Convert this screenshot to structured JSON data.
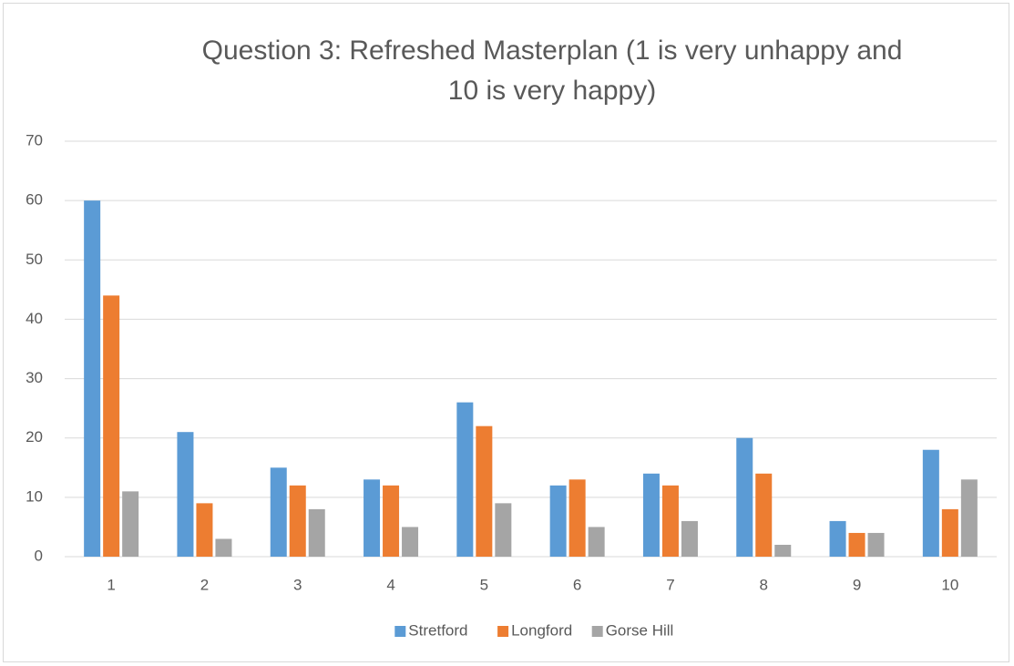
{
  "chart_data": {
    "type": "bar",
    "title": "Question 3: Refreshed Masterplan (1 is very unhappy and 10 is very happy)",
    "categories": [
      "1",
      "2",
      "3",
      "4",
      "5",
      "6",
      "7",
      "8",
      "9",
      "10"
    ],
    "series": [
      {
        "name": "Stretford",
        "color": "#5b9bd5",
        "values": [
          60,
          21,
          15,
          13,
          26,
          12,
          14,
          20,
          6,
          18
        ]
      },
      {
        "name": "Longford",
        "color": "#ed7d31",
        "values": [
          44,
          9,
          12,
          12,
          22,
          13,
          12,
          14,
          4,
          8
        ]
      },
      {
        "name": "Gorse Hill",
        "color": "#a5a5a5",
        "values": [
          11,
          3,
          8,
          5,
          9,
          5,
          6,
          2,
          4,
          13
        ]
      }
    ],
    "ylim": [
      0,
      70
    ],
    "yticks": [
      0,
      10,
      20,
      30,
      40,
      50,
      60,
      70
    ],
    "grid": true,
    "legend": "bottom"
  }
}
